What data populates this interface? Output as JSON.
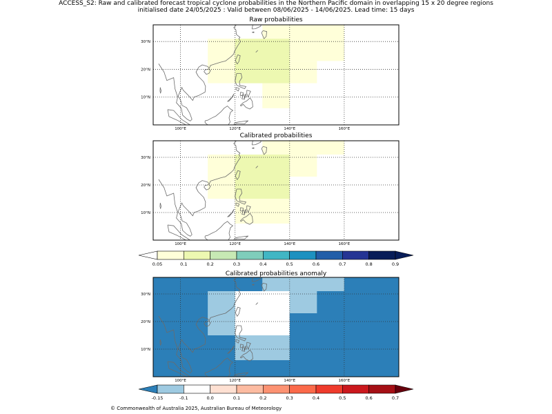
{
  "title_line1": "ACCESS_S2: Raw and calibrated forecast tropical cyclone probabilities in the Northern Pacific domain in overlapping 15 x 20 degree regions",
  "title_line2": "initialised date 24/05/2025 :  Valid between 08/06/2025 - 14/06/2025. Lead time: 15 days",
  "footer": "© Commonwealth of Australia 2025, Australian Bureau of Meteorology",
  "colors": {
    "prob_scale": [
      "#ffffd9",
      "#edf8b1",
      "#c7e9b4",
      "#7fcdbb",
      "#41b6c4",
      "#1d91c0",
      "#225ea8",
      "#253494",
      "#081d58"
    ],
    "anom_scale": [
      "#2c7fb8",
      "#9ecae1",
      "#ffffff",
      "#fee0d2",
      "#fcbba1",
      "#fc9272",
      "#fb6a4a",
      "#ef3b2c",
      "#cb181d",
      "#a50f15",
      "#67000d"
    ]
  },
  "chart_data": [
    {
      "type": "heatmap",
      "title": "Raw probabilities",
      "lon_range": [
        90,
        180
      ],
      "lat_range": [
        0,
        36
      ],
      "x_ticks": [
        "100°E",
        "120°E",
        "140°E",
        "160°E"
      ],
      "y_ticks": [
        "10°N",
        "20°N",
        "30°N"
      ],
      "cells": [
        {
          "lon": [
            130,
            160
          ],
          "lat": [
            23,
            36
          ],
          "bin": "0.05-0.1"
        },
        {
          "lon": [
            130,
            150
          ],
          "lat": [
            15,
            23
          ],
          "bin": "0.05-0.1"
        },
        {
          "lon": [
            110,
            130
          ],
          "lat": [
            15,
            31
          ],
          "bin": "0.05-0.1"
        },
        {
          "lon": [
            130,
            140
          ],
          "lat": [
            6,
            15
          ],
          "bin": "0.05-0.1"
        },
        {
          "lon": [
            120,
            140
          ],
          "lat": [
            15,
            31
          ],
          "bin": "0.1-0.2"
        }
      ]
    },
    {
      "type": "heatmap",
      "title": "Calibrated probabilities",
      "lon_range": [
        90,
        180
      ],
      "lat_range": [
        0,
        36
      ],
      "x_ticks": [
        "100°E",
        "120°E",
        "140°E",
        "160°E"
      ],
      "y_ticks": [
        "10°N",
        "20°N",
        "30°N"
      ],
      "cells": [
        {
          "lon": [
            130,
            160
          ],
          "lat": [
            31,
            36
          ],
          "bin": "0.05-0.1"
        },
        {
          "lon": [
            140,
            150
          ],
          "lat": [
            23,
            31
          ],
          "bin": "0.05-0.1"
        },
        {
          "lon": [
            110,
            120
          ],
          "lat": [
            15,
            31
          ],
          "bin": "0.05-0.1"
        },
        {
          "lon": [
            120,
            140
          ],
          "lat": [
            6,
            15
          ],
          "bin": "0.05-0.1"
        },
        {
          "lon": [
            120,
            140
          ],
          "lat": [
            15,
            31
          ],
          "bin": "0.1-0.2"
        }
      ]
    },
    {
      "type": "heatmap",
      "title": "Calibrated probabilities anomaly",
      "lon_range": [
        90,
        180
      ],
      "lat_range": [
        0,
        36
      ],
      "x_ticks": [
        "100°E",
        "120°E",
        "140°E",
        "160°E"
      ],
      "y_ticks": [
        "10°N",
        "20°N",
        "30°N"
      ],
      "background_bin": "-0.15--0.1",
      "cells": [
        {
          "lon": [
            130,
            160
          ],
          "lat": [
            31,
            36
          ],
          "bin": "-0.1-0.0"
        },
        {
          "lon": [
            140,
            150
          ],
          "lat": [
            23,
            31
          ],
          "bin": "-0.1-0.0"
        },
        {
          "lon": [
            110,
            120
          ],
          "lat": [
            15,
            31
          ],
          "bin": "-0.1-0.0"
        },
        {
          "lon": [
            120,
            140
          ],
          "lat": [
            6,
            15
          ],
          "bin": "-0.1-0.0"
        },
        {
          "lon": [
            120,
            140
          ],
          "lat": [
            15,
            31
          ],
          "bin": "0.0-0.1"
        }
      ]
    }
  ],
  "colorbar_prob": {
    "ticks": [
      "0.05",
      "0.1",
      "0.2",
      "0.3",
      "0.4",
      "0.5",
      "0.6",
      "0.7",
      "0.8",
      "0.9"
    ]
  },
  "colorbar_anom": {
    "ticks": [
      "-0.15",
      "-0.1",
      "0.0",
      "0.1",
      "0.2",
      "0.3",
      "0.4",
      "0.5",
      "0.6",
      "0.7"
    ]
  }
}
